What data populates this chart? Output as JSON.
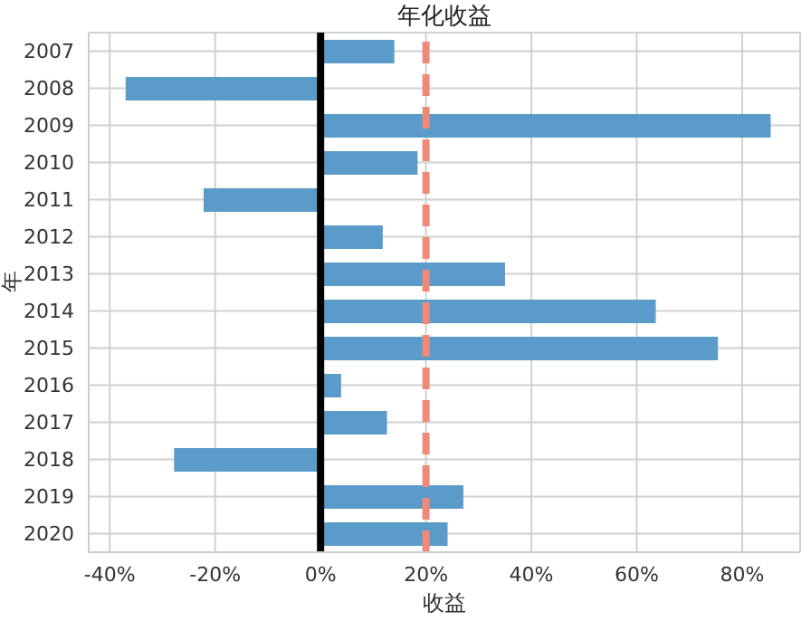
{
  "chart_data": {
    "type": "bar",
    "orientation": "horizontal",
    "title": "年化收益",
    "xlabel": "收益",
    "ylabel": "年",
    "categories": [
      "2007",
      "2008",
      "2009",
      "2010",
      "2011",
      "2012",
      "2013",
      "2014",
      "2015",
      "2016",
      "2017",
      "2018",
      "2019",
      "2020"
    ],
    "values": [
      14,
      -37,
      85.4,
      18.4,
      -22.2,
      11.8,
      35,
      63.6,
      75.4,
      3.9,
      12.6,
      -27.8,
      27.1,
      24.1
    ],
    "color": "#5b9bc9",
    "xlim": [
      -44,
      91
    ],
    "xticks": [
      {
        "value": -40,
        "label": "-40%"
      },
      {
        "value": -20,
        "label": "-20%"
      },
      {
        "value": 0,
        "label": "0%"
      },
      {
        "value": 20,
        "label": "20%"
      },
      {
        "value": 40,
        "label": "40%"
      },
      {
        "value": 60,
        "label": "60%"
      },
      {
        "value": 80,
        "label": "80%"
      }
    ],
    "ref_lines": [
      {
        "axis": "x",
        "value": 0,
        "label": null,
        "color": "#000000",
        "line_style": "solid"
      },
      {
        "axis": "x",
        "value": 20,
        "label": null,
        "color": "#ee8a78",
        "line_style": "dashed"
      }
    ],
    "grid": true,
    "legend": false
  }
}
